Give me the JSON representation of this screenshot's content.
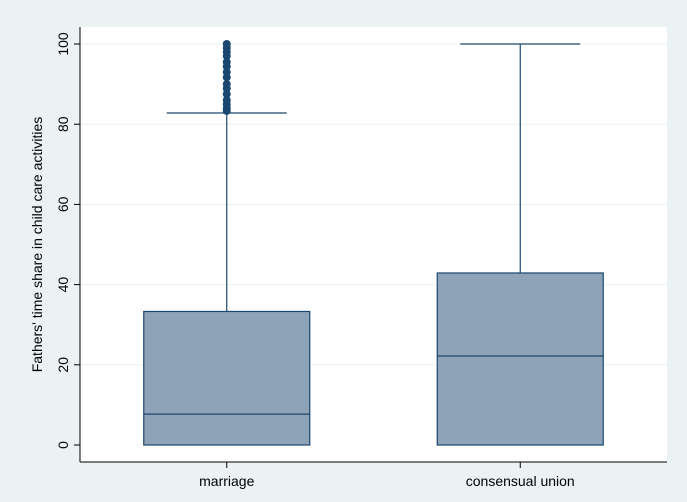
{
  "chart_data": {
    "type": "box",
    "ylabel": "Fathers' time share in child care activities",
    "xlabel": "",
    "ylim": [
      0,
      100
    ],
    "yticks": [
      0,
      20,
      40,
      60,
      80,
      100
    ],
    "grid": true,
    "categories": [
      "marriage",
      "consensual union"
    ],
    "boxes": [
      {
        "category": "marriage",
        "min": 0,
        "q1": 0,
        "median": 7.7,
        "q3": 33.3,
        "whisker_high": 82.8,
        "outliers": [
          83.3,
          84.0,
          85.0,
          86.0,
          87.5,
          88.9,
          90.0,
          91.7,
          93.0,
          94.4,
          95.5,
          97.0,
          98.0,
          99.0,
          100
        ]
      },
      {
        "category": "consensual union",
        "min": 0,
        "q1": 0,
        "median": 22.2,
        "q3": 42.9,
        "whisker_high": 100,
        "outliers": []
      }
    ],
    "colors": {
      "outer_background": "#eaf2f3",
      "plot_background": "#ffffff",
      "box_fill": "#8fa3b8",
      "box_stroke": "#1a476f",
      "outlier": "#1a476f",
      "grid": "#eaf2f3"
    }
  }
}
